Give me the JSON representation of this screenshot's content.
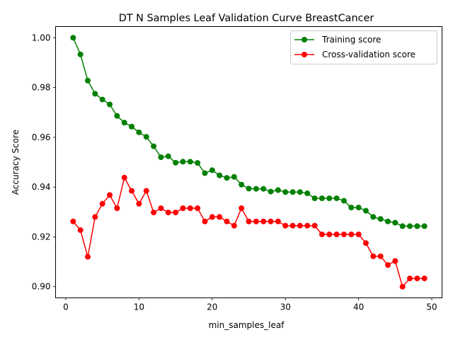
{
  "chart_data": {
    "type": "line",
    "title": "DT N Samples Leaf Validation Curve BreastCancer",
    "xlabel": "min_samples_leaf",
    "ylabel": "Accuracy Score",
    "xlim": [
      -1.4,
      51.4
    ],
    "ylim": [
      0.8955,
      1.0045
    ],
    "xticks": [
      0,
      10,
      20,
      30,
      40,
      50
    ],
    "xtick_labels": [
      "0",
      "10",
      "20",
      "30",
      "40",
      "50"
    ],
    "yticks": [
      0.9,
      0.92,
      0.94,
      0.96,
      0.98,
      1.0
    ],
    "ytick_labels": [
      "0.90",
      "0.92",
      "0.94",
      "0.96",
      "0.98",
      "1.00"
    ],
    "grid": false,
    "legend_position": "top-right",
    "x": [
      1,
      2,
      3,
      4,
      5,
      6,
      7,
      8,
      9,
      10,
      11,
      12,
      13,
      14,
      15,
      16,
      17,
      18,
      19,
      20,
      21,
      22,
      23,
      24,
      25,
      26,
      27,
      28,
      29,
      30,
      31,
      32,
      33,
      34,
      35,
      36,
      37,
      38,
      39,
      40,
      41,
      42,
      43,
      44,
      45,
      46,
      47,
      48,
      49
    ],
    "series": [
      {
        "name": "Training score",
        "color": "#008000",
        "values": [
          1.0,
          0.9933,
          0.9828,
          0.9775,
          0.9752,
          0.9732,
          0.9686,
          0.9659,
          0.9643,
          0.962,
          0.9602,
          0.9564,
          0.952,
          0.9524,
          0.9498,
          0.9502,
          0.9502,
          0.9497,
          0.9456,
          0.9468,
          0.9447,
          0.9437,
          0.9441,
          0.941,
          0.9394,
          0.9393,
          0.9393,
          0.9382,
          0.9388,
          0.938,
          0.938,
          0.938,
          0.9375,
          0.9355,
          0.9355,
          0.9355,
          0.9355,
          0.9345,
          0.9318,
          0.9318,
          0.9305,
          0.928,
          0.9272,
          0.9262,
          0.9257,
          0.9243,
          0.9243,
          0.9243,
          0.9243
        ]
      },
      {
        "name": "Cross-validation score",
        "color": "#ff0000",
        "values": [
          0.9262,
          0.9227,
          0.912,
          0.928,
          0.9333,
          0.9368,
          0.9315,
          0.9438,
          0.9385,
          0.9333,
          0.9385,
          0.9298,
          0.9315,
          0.9298,
          0.9298,
          0.9315,
          0.9315,
          0.9315,
          0.9262,
          0.928,
          0.928,
          0.9262,
          0.9245,
          0.9315,
          0.9262,
          0.9262,
          0.9262,
          0.9262,
          0.9262,
          0.9245,
          0.9245,
          0.9245,
          0.9245,
          0.9245,
          0.921,
          0.921,
          0.921,
          0.921,
          0.921,
          0.921,
          0.9175,
          0.9122,
          0.9122,
          0.9087,
          0.9103,
          0.9,
          0.9033,
          0.9033,
          0.9033
        ]
      }
    ]
  }
}
